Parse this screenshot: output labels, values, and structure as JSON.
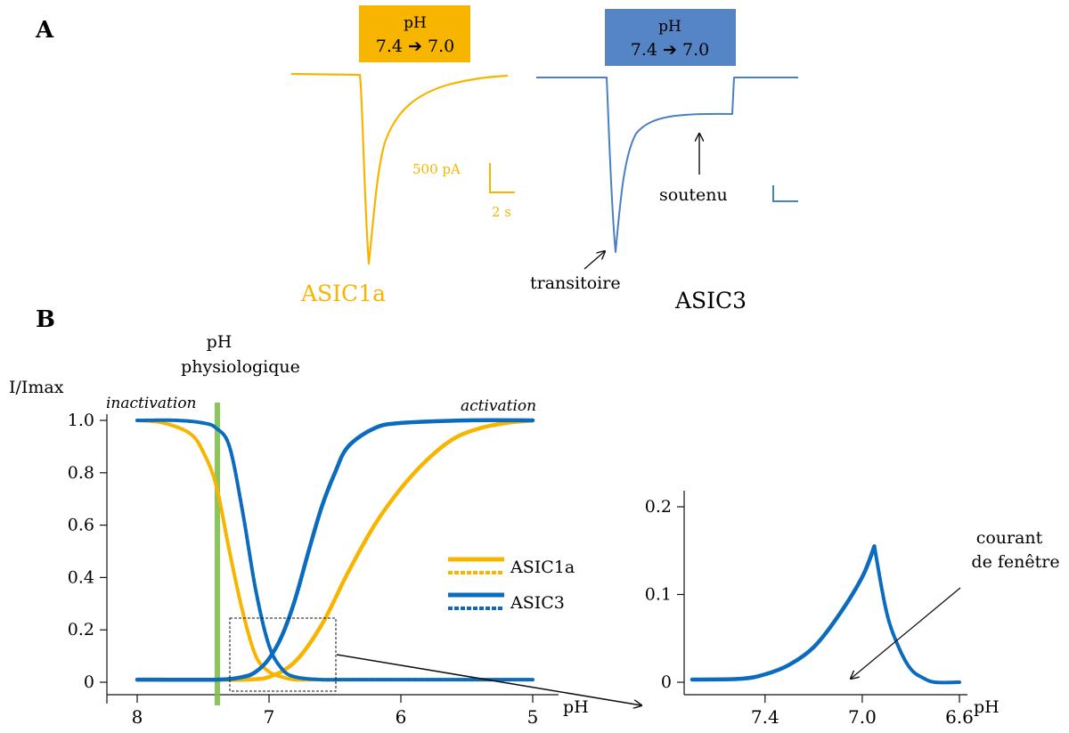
{
  "colors": {
    "asic1a": "#f7b500",
    "asic3": "#0b6cbf",
    "trace3": "#4a7fc3",
    "header3": "#5585c5",
    "green": "#7ec14a",
    "black": "#111111"
  },
  "panel_a": {
    "label": "A",
    "asic1a": {
      "header_line1": "pH",
      "header_line2": "7.4 ➔ 7.0",
      "name": "ASIC1a",
      "scale_current": "500 pA",
      "scale_time": "2 s"
    },
    "asic3": {
      "header_line1": "pH",
      "header_line2": "7.4 ➔ 7.0",
      "name": "ASIC3",
      "annot_transient": "transitoire",
      "annot_sustained": "soutenu"
    }
  },
  "panel_b": {
    "label": "B",
    "physio_line1": "pH",
    "physio_line2": "physiologique",
    "window_line1": "courant",
    "window_line2": "de fenêtre"
  },
  "chart_data": [
    {
      "type": "line",
      "ylabel": "I/Imax",
      "xlabel": "pH",
      "xlim": [
        8,
        5
      ],
      "ylim": [
        0,
        1.0
      ],
      "x_ticks": [
        "8",
        "7",
        "6",
        "5"
      ],
      "y_ticks": [
        "0",
        "0.2",
        "0.4",
        "0.6",
        "0.8",
        "1.0"
      ],
      "annotations": [
        "inactivation",
        "activation"
      ],
      "highlight_x": 7.4,
      "legend_position": "center-right",
      "series": [
        {
          "name": "ASIC1a",
          "kind": "activation",
          "style": "solid",
          "x": [
            8.0,
            7.4,
            7.2,
            7.0,
            6.8,
            6.6,
            6.4,
            6.2,
            6.0,
            5.8,
            5.6,
            5.4,
            5.2,
            5.0
          ],
          "y": [
            0.01,
            0.01,
            0.01,
            0.02,
            0.08,
            0.22,
            0.42,
            0.6,
            0.74,
            0.85,
            0.93,
            0.97,
            0.99,
            1.0
          ]
        },
        {
          "name": "ASIC1a",
          "kind": "inactivation",
          "style": "dashed",
          "x": [
            8.0,
            7.8,
            7.6,
            7.5,
            7.4,
            7.3,
            7.2,
            7.1,
            7.0,
            6.9,
            6.8,
            6.6,
            6.4,
            6.0,
            5.6,
            5.0
          ],
          "y": [
            1.0,
            0.99,
            0.95,
            0.88,
            0.75,
            0.5,
            0.27,
            0.1,
            0.04,
            0.02,
            0.01,
            0.01,
            0.01,
            0.01,
            0.01,
            0.01
          ]
        },
        {
          "name": "ASIC3",
          "kind": "activation",
          "style": "solid",
          "x": [
            8.0,
            7.4,
            7.2,
            7.1,
            7.0,
            6.9,
            6.8,
            6.7,
            6.6,
            6.5,
            6.4,
            6.2,
            6.0,
            5.5,
            5.0
          ],
          "y": [
            0.01,
            0.01,
            0.02,
            0.04,
            0.09,
            0.18,
            0.32,
            0.5,
            0.67,
            0.8,
            0.9,
            0.97,
            0.99,
            1.0,
            1.0
          ]
        },
        {
          "name": "ASIC3",
          "kind": "inactivation",
          "style": "dashed",
          "x": [
            8.0,
            7.7,
            7.5,
            7.4,
            7.3,
            7.2,
            7.1,
            7.0,
            6.9,
            6.8,
            6.6,
            6.4,
            6.0,
            5.6,
            5.0
          ],
          "y": [
            1.0,
            1.0,
            0.99,
            0.97,
            0.9,
            0.65,
            0.35,
            0.14,
            0.05,
            0.02,
            0.01,
            0.01,
            0.01,
            0.01,
            0.01
          ]
        }
      ]
    },
    {
      "type": "line",
      "xlabel": "pH",
      "xlim": [
        7.7,
        6.6
      ],
      "ylim": [
        0,
        0.2
      ],
      "x_ticks": [
        "7.4",
        "7.0",
        "6.6"
      ],
      "y_ticks": [
        "0",
        "0.1",
        "0.2"
      ],
      "series": [
        {
          "name": "ASIC3",
          "kind": "activation",
          "style": "solid",
          "x": [
            7.7,
            7.5,
            7.4,
            7.3,
            7.2,
            7.1,
            7.0,
            6.95
          ],
          "y": [
            0.003,
            0.004,
            0.009,
            0.02,
            0.04,
            0.075,
            0.12,
            0.155
          ]
        },
        {
          "name": "ASIC3",
          "kind": "inactivation",
          "style": "dashed",
          "x": [
            6.95,
            6.9,
            6.85,
            6.8,
            6.75,
            6.7,
            6.6
          ],
          "y": [
            0.155,
            0.08,
            0.04,
            0.015,
            0.005,
            0.0,
            0.0
          ]
        }
      ]
    }
  ]
}
